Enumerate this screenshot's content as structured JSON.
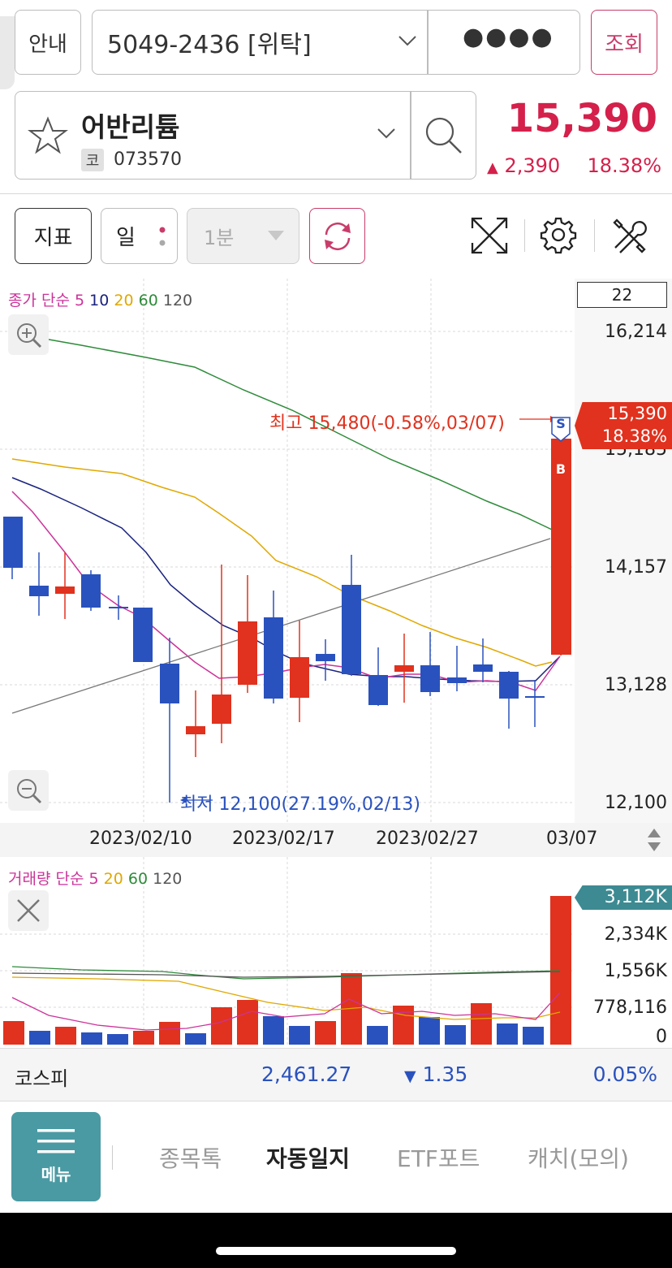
{
  "header": {
    "guide_label": "안내",
    "account": "5049-2436 [위탁]",
    "password_mask": "●●●●",
    "query_label": "조회"
  },
  "stock": {
    "name": "어반리튬",
    "market_badge": "코",
    "code": "073570",
    "price": "15,390",
    "change_arrow": "▲",
    "change": "2,390",
    "change_rate": "18.38%"
  },
  "toolbar": {
    "indicator_label": "지표",
    "period_label": "일",
    "minute_label": "1분"
  },
  "price_chart": {
    "legend": {
      "title": "종가 단순",
      "periods": [
        {
          "label": "5",
          "color": "#cc3399"
        },
        {
          "label": "10",
          "color": "#1a237e"
        },
        {
          "label": "20",
          "color": "#e0a800"
        },
        {
          "label": "60",
          "color": "#2e8b3a"
        },
        {
          "label": "120",
          "color": "#555555"
        }
      ]
    },
    "count": "22",
    "y_labels": [
      "16,214",
      "15,185",
      "14,157",
      "13,128",
      "12,100"
    ],
    "price_tag_value": "15,390",
    "price_tag_rate": "18.38%",
    "high_label": "최고 15,480(-0.58%,03/07)",
    "low_label": "최저 12,100(27.19%,02/13)",
    "x_labels": [
      "2023/02/10",
      "2023/02/17",
      "2023/02/27",
      "03/07"
    ],
    "sell_marker": "S",
    "buy_marker": "B",
    "colors": {
      "up": "#e0321e",
      "down": "#2a52be"
    }
  },
  "volume_chart": {
    "legend": {
      "title": "거래량 단순",
      "periods": [
        {
          "label": "5",
          "color": "#cc3399"
        },
        {
          "label": "20",
          "color": "#e0a800"
        },
        {
          "label": "60",
          "color": "#2e8b3a"
        },
        {
          "label": "120",
          "color": "#555555"
        }
      ]
    },
    "tag_value": "3,112K",
    "y_labels": [
      "2,334K",
      "1,556K",
      "778,116",
      "0"
    ]
  },
  "index": {
    "name": "코스피",
    "value": "2,461.27",
    "change_arrow": "▼",
    "change": "1.35",
    "rate": "0.05%"
  },
  "nav": {
    "menu_label": "메뉴",
    "tabs": [
      {
        "label": "종목톡",
        "active": false
      },
      {
        "label": "자동일지",
        "active": true
      },
      {
        "label": "ETF포트",
        "active": false
      },
      {
        "label": "캐치(모의)",
        "active": false
      }
    ]
  }
}
